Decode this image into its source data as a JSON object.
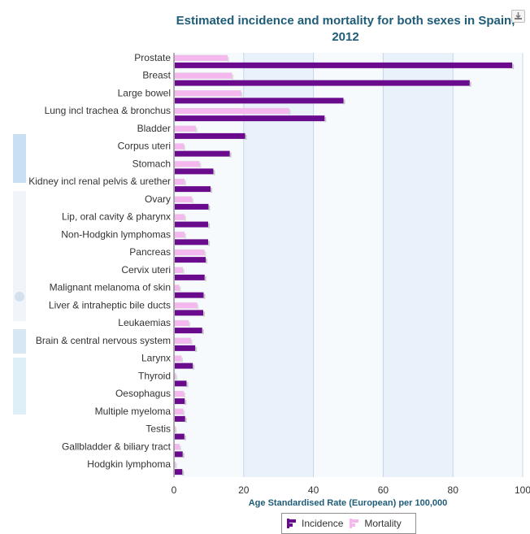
{
  "chart_data": {
    "type": "bar",
    "orientation": "horizontal",
    "title": "Estimated incidence and mortality for both sexes in Spain, 2012",
    "xlabel": "Age Standardised Rate (European) per 100,000",
    "ylabel": "",
    "xlim": [
      0,
      100
    ],
    "xticks": [
      "0",
      "20",
      "40",
      "60",
      "80",
      "100"
    ],
    "grid": "alternating vertical bands",
    "legend_position": "bottom-center",
    "categories": [
      "Prostate",
      "Breast",
      "Large bowel",
      "Lung incl trachea & bronchus",
      "Bladder",
      "Corpus uteri",
      "Stomach",
      "Kidney incl renal pelvis & urether",
      "Ovary",
      "Lip, oral cavity & pharynx",
      "Non-Hodgkin lymphomas",
      "Pancreas",
      "Cervix uteri",
      "Malignant melanoma of skin",
      "Liver & intraheptic bile ducts",
      "Leukaemias",
      "Brain & central nervous system",
      "Larynx",
      "Thyroid",
      "Oesophagus",
      "Multiple myeloma",
      "Testis",
      "Gallbladder & biliary tract",
      "Hodgkin lymphoma"
    ],
    "series": [
      {
        "name": "Mortality",
        "color": "#f5b8ee",
        "values": [
          15.3,
          16.6,
          19.2,
          33.0,
          6.2,
          2.8,
          7.3,
          3.0,
          5.1,
          3.0,
          3.0,
          8.7,
          2.5,
          1.5,
          6.6,
          4.2,
          4.8,
          2.1,
          0.5,
          2.8,
          2.6,
          0.3,
          1.6,
          0.4
        ]
      },
      {
        "name": "Incidence",
        "color": "#6a0a8c",
        "values": [
          97.0,
          84.8,
          48.6,
          43.2,
          20.4,
          16.0,
          11.3,
          10.5,
          9.9,
          9.8,
          9.8,
          9.1,
          8.8,
          8.5,
          8.4,
          8.1,
          6.1,
          5.4,
          3.6,
          3.1,
          3.2,
          3.0,
          2.5,
          2.4
        ]
      }
    ]
  },
  "legend": {
    "incidence_label": "Incidence",
    "mortality_label": "Mortality"
  },
  "icons": {
    "export": "download-icon"
  }
}
